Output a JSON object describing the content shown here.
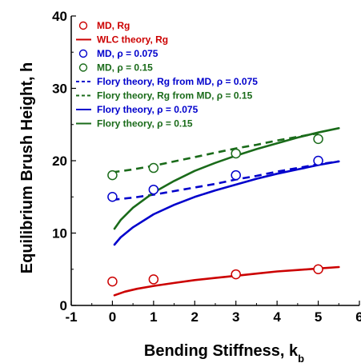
{
  "chart_data": {
    "type": "line",
    "xlabel": "Bending Stiffness, k",
    "xlabel_sub": "b",
    "ylabel": "Equilibrium Brush Height, h",
    "xlim": [
      -1,
      6
    ],
    "ylim": [
      0,
      40
    ],
    "xticks": [
      "-1",
      "0",
      "1",
      "2",
      "3",
      "4",
      "5",
      "6"
    ],
    "yticks": [
      "0",
      "10",
      "20",
      "30",
      "40"
    ],
    "xtick_values": [
      -1,
      0,
      1,
      2,
      3,
      4,
      5,
      6
    ],
    "ytick_values": [
      0,
      10,
      20,
      30,
      40
    ],
    "legend_position": "top-left",
    "colors": {
      "red": "#cc0000",
      "blue": "#0000cc",
      "green": "#1a6b1a"
    },
    "series": [
      {
        "name": "MD, Rg",
        "kind": "markers",
        "color": "#cc0000",
        "x": [
          0,
          1,
          3,
          5
        ],
        "y": [
          3.3,
          3.6,
          4.3,
          5.0
        ]
      },
      {
        "name": "WLC theory, Rg",
        "kind": "line",
        "style": "solid",
        "color": "#cc0000",
        "x": [
          0.05,
          0.3,
          0.6,
          1,
          1.5,
          2,
          2.5,
          3,
          3.5,
          4,
          4.5,
          5,
          5.5
        ],
        "y": [
          1.4,
          1.9,
          2.3,
          2.7,
          3.1,
          3.5,
          3.8,
          4.1,
          4.4,
          4.7,
          4.9,
          5.1,
          5.3
        ]
      },
      {
        "name": "MD, ρ = 0.075",
        "kind": "markers",
        "color": "#0000cc",
        "x": [
          0,
          1,
          3,
          5
        ],
        "y": [
          15.0,
          16.0,
          18.0,
          20.0
        ]
      },
      {
        "name": "MD, ρ = 0.15",
        "kind": "markers",
        "color": "#1a6b1a",
        "x": [
          0,
          1,
          3,
          5
        ],
        "y": [
          18.0,
          19.0,
          21.0,
          23.0
        ]
      },
      {
        "name": "Flory theory, Rg from MD, ρ = 0.075",
        "kind": "line",
        "style": "dashed",
        "color": "#0000cc",
        "x": [
          0,
          0.5,
          1,
          1.5,
          2,
          2.5,
          3,
          3.5,
          4,
          4.5,
          5,
          5.5
        ],
        "y": [
          14.6,
          14.9,
          15.3,
          15.8,
          16.3,
          16.8,
          17.4,
          17.9,
          18.5,
          19.0,
          19.5,
          19.9
        ]
      },
      {
        "name": "Flory theory, Rg from MD, ρ = 0.15",
        "kind": "line",
        "style": "dashed",
        "color": "#1a6b1a",
        "x": [
          0,
          0.5,
          1,
          1.5,
          2,
          2.5,
          3,
          3.5,
          4,
          4.5,
          5
        ],
        "y": [
          18.4,
          18.8,
          19.3,
          19.9,
          20.5,
          21.1,
          21.7,
          22.2,
          22.8,
          23.3,
          23.8
        ]
      },
      {
        "name": "Flory theory, ρ = 0.075",
        "kind": "line",
        "style": "solid",
        "color": "#0000cc",
        "x": [
          0.05,
          0.2,
          0.5,
          1,
          1.5,
          2,
          2.5,
          3,
          3.5,
          4,
          4.5,
          5,
          5.5
        ],
        "y": [
          8.4,
          9.4,
          10.8,
          12.6,
          13.9,
          15.0,
          15.9,
          16.7,
          17.5,
          18.2,
          18.8,
          19.4,
          19.9
        ]
      },
      {
        "name": "Flory theory, ρ = 0.15",
        "kind": "line",
        "style": "solid",
        "color": "#1a6b1a",
        "x": [
          0.05,
          0.2,
          0.5,
          1,
          1.5,
          2,
          2.5,
          3,
          3.5,
          4,
          4.5,
          5,
          5.5
        ],
        "y": [
          10.6,
          11.8,
          13.5,
          15.6,
          17.2,
          18.6,
          19.7,
          20.7,
          21.6,
          22.4,
          23.2,
          23.9,
          24.5
        ]
      }
    ]
  }
}
